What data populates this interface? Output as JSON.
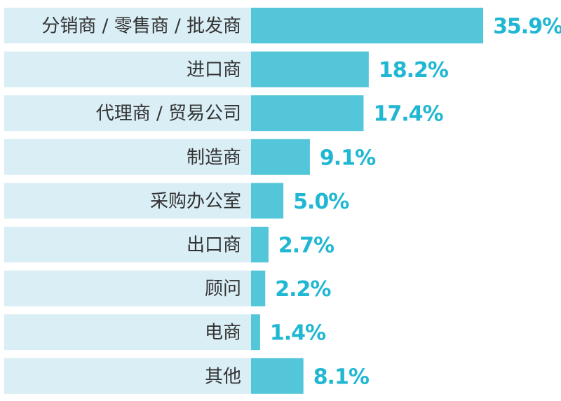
{
  "chart_data": {
    "type": "bar",
    "orientation": "horizontal",
    "categories": [
      "分销商 / 零售商 / 批发商",
      "进口商",
      "代理商 / 贸易公司",
      "制造商",
      "采购办公室",
      "出口商",
      "顾问",
      "电商",
      "其他"
    ],
    "values": [
      35.9,
      18.2,
      17.4,
      9.1,
      5.0,
      2.7,
      2.2,
      1.4,
      8.1
    ],
    "value_labels": [
      "35.9%",
      "18.2%",
      "17.4%",
      "9.1%",
      "5.0%",
      "2.7%",
      "2.2%",
      "1.4%",
      "8.1%"
    ],
    "unit": "%",
    "xlim": [
      0,
      36
    ],
    "grid": false,
    "legend": "none"
  },
  "colors": {
    "bar": "#53c6d9",
    "label_background": "#daeef5",
    "value_text": "#1fb7d2",
    "category_text": "#333333"
  }
}
